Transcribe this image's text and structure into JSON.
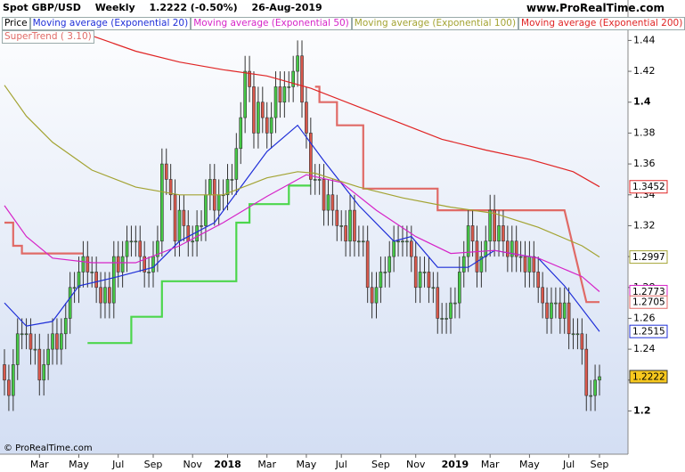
{
  "chart_data": {
    "type": "candlestick",
    "title": "Spot GBP/USD",
    "period": "Weekly",
    "last_price": "1.2222 (-0.50%)",
    "date": "26-Aug-2019",
    "source": "www.ProRealTime.com",
    "copyright": "© ProRealTime.com",
    "ylim": [
      1.172,
      1.446
    ],
    "yticks": [
      1.2,
      1.22,
      1.24,
      1.26,
      1.28,
      1.3,
      1.32,
      1.34,
      1.36,
      1.38,
      1.4,
      1.42,
      1.44
    ],
    "grid": false,
    "categories": [
      null,
      null,
      null,
      null,
      null,
      null,
      null,
      null,
      "Mar",
      null,
      null,
      null,
      null,
      null,
      null,
      null,
      null,
      "May",
      null,
      null,
      null,
      null,
      null,
      null,
      null,
      null,
      "Jul",
      null,
      null,
      null,
      null,
      null,
      null,
      null,
      "Sep",
      null,
      null,
      null,
      null,
      null,
      null,
      null,
      null,
      "Nov",
      null,
      null,
      null,
      null,
      null,
      null,
      null,
      "2018",
      null,
      null,
      null,
      null,
      null,
      null,
      null,
      null,
      "Mar",
      null,
      null,
      null,
      null,
      null,
      null,
      null,
      null,
      "May",
      null,
      null,
      null,
      null,
      null,
      null,
      null,
      "Jul",
      null,
      null,
      null,
      null,
      null,
      null,
      null,
      null,
      "Sep",
      null,
      null,
      null,
      null,
      null,
      null,
      null,
      "Nov",
      null,
      null,
      null,
      null,
      null,
      null,
      null,
      null,
      "2019",
      null,
      null,
      null,
      null,
      null,
      null,
      null,
      "Mar",
      null,
      null,
      null,
      null,
      null,
      null,
      null,
      null,
      "May",
      null,
      null,
      null,
      null,
      null,
      null,
      null,
      null,
      "Jul",
      null,
      null,
      null,
      null,
      null,
      null,
      "Sep"
    ],
    "price": {
      "name": "Price",
      "color": "#000000",
      "up_color": "#46c846",
      "down_color": "#d9584c",
      "last_tag_color": "#f7c81e",
      "open": [
        1.23,
        1.22,
        1.21,
        1.23,
        1.25,
        1.25,
        1.25,
        1.24,
        1.24,
        1.22,
        1.23,
        1.24,
        1.25,
        1.24,
        1.25,
        1.26,
        1.28,
        1.28,
        1.29,
        1.3,
        1.29,
        1.29,
        1.28,
        1.27,
        1.28,
        1.27,
        1.3,
        1.29,
        1.3,
        1.31,
        1.31,
        1.31,
        1.3,
        1.29,
        1.29,
        1.3,
        1.31,
        1.36,
        1.35,
        1.34,
        1.31,
        1.33,
        1.32,
        1.31,
        1.31,
        1.32,
        1.32,
        1.34,
        1.35,
        1.33,
        1.34,
        1.34,
        1.35,
        1.35,
        1.37,
        1.39,
        1.42,
        1.41,
        1.38,
        1.4,
        1.39,
        1.38,
        1.39,
        1.41,
        1.4,
        1.41,
        1.41,
        1.42,
        1.43,
        1.4,
        1.38,
        1.35,
        1.35,
        1.35,
        1.33,
        1.34,
        1.33,
        1.32,
        1.32,
        1.31,
        1.33,
        1.31,
        1.31,
        1.31,
        1.28,
        1.27,
        1.28,
        1.29,
        1.29,
        1.3,
        1.31,
        1.31,
        1.31,
        1.31,
        1.3,
        1.28,
        1.29,
        1.29,
        1.28,
        1.28,
        1.26,
        1.26,
        1.26,
        1.27,
        1.27,
        1.29,
        1.3,
        1.32,
        1.31,
        1.29,
        1.3,
        1.31,
        1.33,
        1.31,
        1.32,
        1.31,
        1.3,
        1.31,
        1.3,
        1.3,
        1.29,
        1.3,
        1.29,
        1.28,
        1.27,
        1.26,
        1.27,
        1.27,
        1.26,
        1.27,
        1.25,
        1.25,
        1.25,
        1.24,
        1.21,
        1.21,
        1.22
      ],
      "high": [
        1.24,
        1.23,
        1.24,
        1.26,
        1.26,
        1.26,
        1.26,
        1.25,
        1.25,
        1.24,
        1.25,
        1.26,
        1.26,
        1.26,
        1.27,
        1.29,
        1.29,
        1.3,
        1.31,
        1.31,
        1.3,
        1.3,
        1.29,
        1.29,
        1.29,
        1.31,
        1.31,
        1.31,
        1.32,
        1.32,
        1.32,
        1.32,
        1.31,
        1.3,
        1.31,
        1.32,
        1.37,
        1.37,
        1.36,
        1.35,
        1.34,
        1.34,
        1.33,
        1.32,
        1.33,
        1.33,
        1.35,
        1.36,
        1.36,
        1.35,
        1.35,
        1.36,
        1.36,
        1.38,
        1.4,
        1.43,
        1.43,
        1.42,
        1.41,
        1.41,
        1.4,
        1.4,
        1.42,
        1.42,
        1.42,
        1.42,
        1.43,
        1.44,
        1.44,
        1.41,
        1.39,
        1.36,
        1.36,
        1.36,
        1.35,
        1.35,
        1.34,
        1.33,
        1.33,
        1.34,
        1.34,
        1.32,
        1.32,
        1.32,
        1.29,
        1.29,
        1.3,
        1.3,
        1.31,
        1.32,
        1.32,
        1.32,
        1.32,
        1.32,
        1.31,
        1.3,
        1.3,
        1.3,
        1.29,
        1.29,
        1.27,
        1.27,
        1.28,
        1.28,
        1.3,
        1.31,
        1.33,
        1.33,
        1.32,
        1.31,
        1.32,
        1.34,
        1.34,
        1.33,
        1.33,
        1.32,
        1.32,
        1.32,
        1.31,
        1.31,
        1.31,
        1.31,
        1.3,
        1.29,
        1.28,
        1.28,
        1.28,
        1.28,
        1.28,
        1.28,
        1.26,
        1.26,
        1.26,
        1.25,
        1.22,
        1.23,
        1.23
      ],
      "low": [
        1.21,
        1.2,
        1.2,
        1.22,
        1.24,
        1.24,
        1.23,
        1.23,
        1.21,
        1.21,
        1.22,
        1.23,
        1.23,
        1.23,
        1.24,
        1.25,
        1.27,
        1.27,
        1.28,
        1.28,
        1.28,
        1.27,
        1.26,
        1.26,
        1.26,
        1.26,
        1.28,
        1.28,
        1.29,
        1.3,
        1.3,
        1.29,
        1.28,
        1.28,
        1.28,
        1.29,
        1.3,
        1.34,
        1.33,
        1.3,
        1.3,
        1.31,
        1.3,
        1.3,
        1.3,
        1.31,
        1.31,
        1.33,
        1.32,
        1.32,
        1.33,
        1.33,
        1.34,
        1.34,
        1.36,
        1.38,
        1.4,
        1.37,
        1.37,
        1.38,
        1.37,
        1.37,
        1.38,
        1.39,
        1.39,
        1.4,
        1.4,
        1.41,
        1.39,
        1.37,
        1.34,
        1.34,
        1.34,
        1.32,
        1.32,
        1.32,
        1.31,
        1.31,
        1.3,
        1.3,
        1.3,
        1.3,
        1.3,
        1.27,
        1.26,
        1.26,
        1.27,
        1.28,
        1.28,
        1.29,
        1.3,
        1.3,
        1.3,
        1.29,
        1.27,
        1.27,
        1.28,
        1.27,
        1.27,
        1.25,
        1.25,
        1.25,
        1.25,
        1.26,
        1.26,
        1.28,
        1.29,
        1.3,
        1.28,
        1.28,
        1.29,
        1.3,
        1.3,
        1.3,
        1.3,
        1.29,
        1.29,
        1.29,
        1.29,
        1.28,
        1.28,
        1.28,
        1.27,
        1.26,
        1.25,
        1.25,
        1.26,
        1.25,
        1.25,
        1.24,
        1.24,
        1.24,
        1.23,
        1.2,
        1.2,
        1.2,
        1.21
      ],
      "close": [
        1.22,
        1.21,
        1.23,
        1.25,
        1.25,
        1.25,
        1.24,
        1.24,
        1.22,
        1.23,
        1.24,
        1.25,
        1.24,
        1.25,
        1.26,
        1.28,
        1.28,
        1.29,
        1.3,
        1.29,
        1.29,
        1.28,
        1.27,
        1.28,
        1.27,
        1.3,
        1.29,
        1.3,
        1.31,
        1.31,
        1.31,
        1.3,
        1.29,
        1.29,
        1.3,
        1.31,
        1.36,
        1.35,
        1.34,
        1.31,
        1.33,
        1.32,
        1.31,
        1.31,
        1.32,
        1.32,
        1.34,
        1.35,
        1.33,
        1.34,
        1.34,
        1.35,
        1.35,
        1.37,
        1.39,
        1.42,
        1.41,
        1.38,
        1.4,
        1.39,
        1.38,
        1.39,
        1.41,
        1.4,
        1.41,
        1.41,
        1.42,
        1.43,
        1.4,
        1.38,
        1.35,
        1.35,
        1.35,
        1.33,
        1.34,
        1.33,
        1.32,
        1.32,
        1.31,
        1.33,
        1.31,
        1.31,
        1.31,
        1.28,
        1.27,
        1.28,
        1.29,
        1.29,
        1.3,
        1.31,
        1.31,
        1.31,
        1.31,
        1.3,
        1.28,
        1.29,
        1.29,
        1.28,
        1.28,
        1.26,
        1.26,
        1.26,
        1.27,
        1.27,
        1.29,
        1.3,
        1.32,
        1.31,
        1.29,
        1.3,
        1.31,
        1.33,
        1.31,
        1.32,
        1.31,
        1.3,
        1.31,
        1.3,
        1.3,
        1.29,
        1.3,
        1.29,
        1.28,
        1.27,
        1.26,
        1.27,
        1.27,
        1.26,
        1.27,
        1.25,
        1.25,
        1.25,
        1.24,
        1.21,
        1.21,
        1.22,
        1.2222
      ]
    },
    "lines": [
      {
        "name": "Moving average (Exponential 20)",
        "color": "#1f2fd8",
        "x": [
          0,
          5,
          11,
          17,
          26,
          34,
          40,
          48,
          54,
          60,
          67,
          73,
          81,
          89,
          93,
          99,
          106,
          112,
          118,
          122,
          128,
          136
        ],
        "values": [
          1.27,
          1.255,
          1.258,
          1.281,
          1.287,
          1.293,
          1.31,
          1.322,
          1.345,
          1.368,
          1.385,
          1.362,
          1.333,
          1.31,
          1.313,
          1.293,
          1.293,
          1.304,
          1.301,
          1.299,
          1.281,
          1.2515
        ]
      },
      {
        "name": "Moving average (Exponential 50)",
        "color": "#d624c8",
        "x": [
          0,
          5,
          11,
          20,
          30,
          40,
          50,
          60,
          69,
          77,
          85,
          94,
          102,
          112,
          122,
          132,
          136
        ],
        "values": [
          1.333,
          1.313,
          1.299,
          1.296,
          1.296,
          1.307,
          1.322,
          1.339,
          1.353,
          1.348,
          1.33,
          1.313,
          1.302,
          1.304,
          1.299,
          1.287,
          1.2773
        ]
      },
      {
        "name": "Moving average (Exponential 100)",
        "color": "#a3a332",
        "x": [
          0,
          5,
          11,
          20,
          30,
          40,
          50,
          60,
          67,
          71,
          81,
          91,
          102,
          112,
          122,
          132,
          136
        ],
        "values": [
          1.411,
          1.391,
          1.374,
          1.356,
          1.345,
          1.34,
          1.34,
          1.351,
          1.355,
          1.354,
          1.345,
          1.338,
          1.332,
          1.328,
          1.319,
          1.307,
          1.2997
        ]
      },
      {
        "name": "Moving average (Exponential 200)",
        "color": "#e02424",
        "x": [
          20,
          30,
          40,
          50,
          60,
          70,
          80,
          90,
          100,
          110,
          120,
          130,
          136
        ],
        "values": [
          1.443,
          1.433,
          1.426,
          1.421,
          1.417,
          1.409,
          1.398,
          1.387,
          1.376,
          1.369,
          1.363,
          1.355,
          1.3452
        ]
      }
    ],
    "supertrend": {
      "name": "SuperTrend ( 3.10)",
      "color": "#e06a66",
      "pieces": [
        {
          "color": "#e06a66",
          "x": [
            0,
            2,
            2,
            4,
            4,
            18
          ],
          "values": [
            1.322,
            1.322,
            1.307,
            1.307,
            1.302,
            1.302
          ]
        },
        {
          "color": "#4cd64c",
          "x": [
            19,
            29,
            29,
            36,
            36,
            53,
            53,
            56,
            56,
            65,
            65,
            70
          ],
          "values": [
            1.244,
            1.244,
            1.261,
            1.261,
            1.284,
            1.284,
            1.322,
            1.322,
            1.334,
            1.334,
            1.346,
            1.346
          ]
        },
        {
          "color": "#e06a66",
          "x": [
            71,
            72,
            72,
            76,
            76,
            82,
            82,
            99,
            99,
            128,
            133,
            136
          ],
          "values": [
            1.41,
            1.41,
            1.4,
            1.4,
            1.385,
            1.385,
            1.344,
            1.344,
            1.33,
            1.33,
            1.2705,
            1.2705
          ]
        }
      ]
    }
  }
}
